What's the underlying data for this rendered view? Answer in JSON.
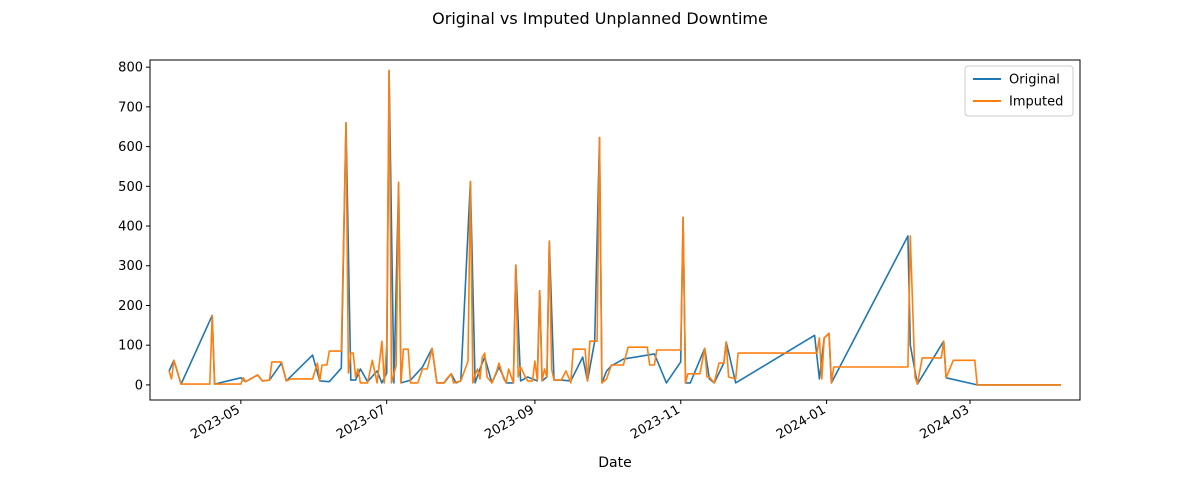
{
  "chart_data": {
    "type": "line",
    "title": "Original vs Imputed Unplanned Downtime",
    "xlabel": "Date",
    "ylabel": "",
    "x_ticks": [
      "2023-05",
      "2023-07",
      "2023-09",
      "2023-11",
      "2024-01",
      "2024-03"
    ],
    "y_ticks": [
      "0",
      "100",
      "200",
      "300",
      "400",
      "500",
      "600",
      "700",
      "800"
    ],
    "xlim": [
      "2023-03-24",
      "2024-04-16"
    ],
    "ylim": [
      -38,
      818
    ],
    "grid": false,
    "legend_position": "top-right",
    "series": [
      {
        "name": "Original",
        "color": "#1f77b4",
        "points": [
          [
            "2023-04-01",
            35
          ],
          [
            "2023-04-03",
            62
          ],
          [
            "2023-04-06",
            2
          ],
          [
            "2023-04-19",
            175
          ],
          [
            "2023-04-20",
            2
          ],
          [
            "2023-05-01",
            18
          ],
          [
            "2023-05-03",
            8
          ],
          [
            "2023-05-08",
            25
          ],
          [
            "2023-05-10",
            10
          ],
          [
            "2023-05-13",
            12
          ],
          [
            "2023-05-18",
            55
          ],
          [
            "2023-05-20",
            10
          ],
          [
            "2023-05-31",
            75
          ],
          [
            "2023-06-03",
            10
          ],
          [
            "2023-06-07",
            8
          ],
          [
            "2023-06-12",
            42
          ],
          [
            "2023-06-14",
            660
          ],
          [
            "2023-06-16",
            12
          ],
          [
            "2023-06-18",
            12
          ],
          [
            "2023-06-20",
            40
          ],
          [
            "2023-06-23",
            8
          ],
          [
            "2023-06-27",
            35
          ],
          [
            "2023-06-29",
            5
          ],
          [
            "2023-07-01",
            30
          ],
          [
            "2023-07-02",
            790
          ],
          [
            "2023-07-04",
            5
          ],
          [
            "2023-07-06",
            505
          ],
          [
            "2023-07-07",
            5
          ],
          [
            "2023-07-11",
            12
          ],
          [
            "2023-07-16",
            45
          ],
          [
            "2023-07-20",
            92
          ],
          [
            "2023-07-22",
            5
          ],
          [
            "2023-07-25",
            5
          ],
          [
            "2023-07-28",
            28
          ],
          [
            "2023-07-30",
            5
          ],
          [
            "2023-08-01",
            10
          ],
          [
            "2023-08-05",
            512
          ],
          [
            "2023-08-07",
            5
          ],
          [
            "2023-08-09",
            40
          ],
          [
            "2023-08-11",
            70
          ],
          [
            "2023-08-14",
            5
          ],
          [
            "2023-08-17",
            45
          ],
          [
            "2023-08-20",
            5
          ],
          [
            "2023-08-23",
            5
          ],
          [
            "2023-08-24",
            302
          ],
          [
            "2023-08-26",
            10
          ],
          [
            "2023-08-29",
            20
          ],
          [
            "2023-09-02",
            10
          ],
          [
            "2023-09-03",
            237
          ],
          [
            "2023-09-04",
            10
          ],
          [
            "2023-09-06",
            20
          ],
          [
            "2023-09-07",
            362
          ],
          [
            "2023-09-09",
            12
          ],
          [
            "2023-09-12",
            12
          ],
          [
            "2023-09-16",
            10
          ],
          [
            "2023-09-21",
            70
          ],
          [
            "2023-09-23",
            10
          ],
          [
            "2023-09-26",
            110
          ],
          [
            "2023-09-28",
            623
          ],
          [
            "2023-09-29",
            5
          ],
          [
            "2023-10-01",
            35
          ],
          [
            "2023-10-03",
            48
          ],
          [
            "2023-10-08",
            65
          ],
          [
            "2023-10-15",
            72
          ],
          [
            "2023-10-21",
            78
          ],
          [
            "2023-10-26",
            5
          ],
          [
            "2023-11-01",
            58
          ],
          [
            "2023-11-02",
            422
          ],
          [
            "2023-11-03",
            5
          ],
          [
            "2023-11-05",
            5
          ],
          [
            "2023-11-11",
            92
          ],
          [
            "2023-11-13",
            15
          ],
          [
            "2023-11-15",
            5
          ],
          [
            "2023-11-19",
            55
          ],
          [
            "2023-11-20",
            108
          ],
          [
            "2023-11-24",
            5
          ],
          [
            "2023-12-27",
            125
          ],
          [
            "2023-12-29",
            15
          ],
          [
            "2023-12-31",
            118
          ],
          [
            "2024-01-02",
            130
          ],
          [
            "2024-01-03",
            5
          ],
          [
            "2024-02-04",
            375
          ],
          [
            "2024-02-05",
            100
          ],
          [
            "2024-02-08",
            2
          ],
          [
            "2024-02-19",
            110
          ],
          [
            "2024-02-20",
            18
          ],
          [
            "2024-03-04",
            0
          ],
          [
            "2024-04-08",
            0
          ]
        ]
      },
      {
        "name": "Imputed",
        "color": "#ff7f0e",
        "points": [
          [
            "2023-04-01",
            35
          ],
          [
            "2023-04-02",
            15
          ],
          [
            "2023-04-03",
            62
          ],
          [
            "2023-04-06",
            2
          ],
          [
            "2023-04-18",
            2
          ],
          [
            "2023-04-19",
            175
          ],
          [
            "2023-04-20",
            2
          ],
          [
            "2023-05-01",
            2
          ],
          [
            "2023-05-02",
            18
          ],
          [
            "2023-05-03",
            8
          ],
          [
            "2023-05-08",
            25
          ],
          [
            "2023-05-10",
            10
          ],
          [
            "2023-05-13",
            12
          ],
          [
            "2023-05-14",
            58
          ],
          [
            "2023-05-18",
            58
          ],
          [
            "2023-05-20",
            10
          ],
          [
            "2023-05-22",
            15
          ],
          [
            "2023-05-31",
            15
          ],
          [
            "2023-06-02",
            55
          ],
          [
            "2023-06-03",
            10
          ],
          [
            "2023-06-04",
            50
          ],
          [
            "2023-06-06",
            50
          ],
          [
            "2023-06-07",
            85
          ],
          [
            "2023-06-12",
            85
          ],
          [
            "2023-06-14",
            660
          ],
          [
            "2023-06-15",
            30
          ],
          [
            "2023-06-16",
            80
          ],
          [
            "2023-06-17",
            80
          ],
          [
            "2023-06-18",
            20
          ],
          [
            "2023-06-19",
            40
          ],
          [
            "2023-06-20",
            5
          ],
          [
            "2023-06-23",
            5
          ],
          [
            "2023-06-25",
            62
          ],
          [
            "2023-06-27",
            5
          ],
          [
            "2023-06-29",
            110
          ],
          [
            "2023-06-30",
            5
          ],
          [
            "2023-07-01",
            100
          ],
          [
            "2023-07-02",
            792
          ],
          [
            "2023-07-03",
            5
          ],
          [
            "2023-07-05",
            50
          ],
          [
            "2023-07-06",
            510
          ],
          [
            "2023-07-07",
            5
          ],
          [
            "2023-07-08",
            90
          ],
          [
            "2023-07-10",
            90
          ],
          [
            "2023-07-11",
            5
          ],
          [
            "2023-07-14",
            5
          ],
          [
            "2023-07-16",
            40
          ],
          [
            "2023-07-18",
            40
          ],
          [
            "2023-07-20",
            92
          ],
          [
            "2023-07-22",
            5
          ],
          [
            "2023-07-25",
            5
          ],
          [
            "2023-07-26",
            15
          ],
          [
            "2023-07-28",
            28
          ],
          [
            "2023-07-29",
            5
          ],
          [
            "2023-08-01",
            10
          ],
          [
            "2023-08-04",
            60
          ],
          [
            "2023-08-05",
            512
          ],
          [
            "2023-08-06",
            5
          ],
          [
            "2023-08-07",
            25
          ],
          [
            "2023-08-08",
            40
          ],
          [
            "2023-08-09",
            15
          ],
          [
            "2023-08-10",
            70
          ],
          [
            "2023-08-11",
            80
          ],
          [
            "2023-08-12",
            20
          ],
          [
            "2023-08-14",
            5
          ],
          [
            "2023-08-16",
            35
          ],
          [
            "2023-08-17",
            55
          ],
          [
            "2023-08-19",
            15
          ],
          [
            "2023-08-20",
            5
          ],
          [
            "2023-08-21",
            40
          ],
          [
            "2023-08-23",
            5
          ],
          [
            "2023-08-24",
            302
          ],
          [
            "2023-08-25",
            20
          ],
          [
            "2023-08-26",
            45
          ],
          [
            "2023-08-28",
            20
          ],
          [
            "2023-08-29",
            10
          ],
          [
            "2023-08-31",
            10
          ],
          [
            "2023-09-01",
            60
          ],
          [
            "2023-09-02",
            12
          ],
          [
            "2023-09-03",
            237
          ],
          [
            "2023-09-04",
            10
          ],
          [
            "2023-09-05",
            40
          ],
          [
            "2023-09-06",
            20
          ],
          [
            "2023-09-07",
            362
          ],
          [
            "2023-09-08",
            40
          ],
          [
            "2023-09-09",
            12
          ],
          [
            "2023-09-12",
            12
          ],
          [
            "2023-09-14",
            35
          ],
          [
            "2023-09-16",
            5
          ],
          [
            "2023-09-17",
            90
          ],
          [
            "2023-09-22",
            90
          ],
          [
            "2023-09-23",
            10
          ],
          [
            "2023-09-24",
            110
          ],
          [
            "2023-09-27",
            110
          ],
          [
            "2023-09-28",
            623
          ],
          [
            "2023-09-29",
            5
          ],
          [
            "2023-10-01",
            15
          ],
          [
            "2023-10-03",
            50
          ],
          [
            "2023-10-08",
            50
          ],
          [
            "2023-10-10",
            95
          ],
          [
            "2023-10-18",
            95
          ],
          [
            "2023-10-19",
            50
          ],
          [
            "2023-10-21",
            50
          ],
          [
            "2023-10-22",
            88
          ],
          [
            "2023-11-01",
            88
          ],
          [
            "2023-11-02",
            422
          ],
          [
            "2023-11-03",
            5
          ],
          [
            "2023-11-04",
            28
          ],
          [
            "2023-11-09",
            28
          ],
          [
            "2023-11-11",
            92
          ],
          [
            "2023-11-12",
            20
          ],
          [
            "2023-11-13",
            20
          ],
          [
            "2023-11-15",
            5
          ],
          [
            "2023-11-17",
            55
          ],
          [
            "2023-11-19",
            55
          ],
          [
            "2023-11-20",
            108
          ],
          [
            "2023-11-21",
            20
          ],
          [
            "2023-11-24",
            15
          ],
          [
            "2023-11-25",
            80
          ],
          [
            "2023-12-28",
            80
          ],
          [
            "2023-12-29",
            118
          ],
          [
            "2023-12-30",
            15
          ],
          [
            "2023-12-31",
            118
          ],
          [
            "2024-01-02",
            130
          ],
          [
            "2024-01-03",
            5
          ],
          [
            "2024-01-04",
            45
          ],
          [
            "2024-02-04",
            45
          ],
          [
            "2024-02-05",
            375
          ],
          [
            "2024-02-07",
            20
          ],
          [
            "2024-02-08",
            2
          ],
          [
            "2024-02-10",
            68
          ],
          [
            "2024-02-18",
            68
          ],
          [
            "2024-02-19",
            110
          ],
          [
            "2024-02-20",
            18
          ],
          [
            "2024-02-23",
            62
          ],
          [
            "2024-03-03",
            62
          ],
          [
            "2024-03-04",
            0
          ],
          [
            "2024-04-08",
            0
          ]
        ]
      }
    ]
  }
}
